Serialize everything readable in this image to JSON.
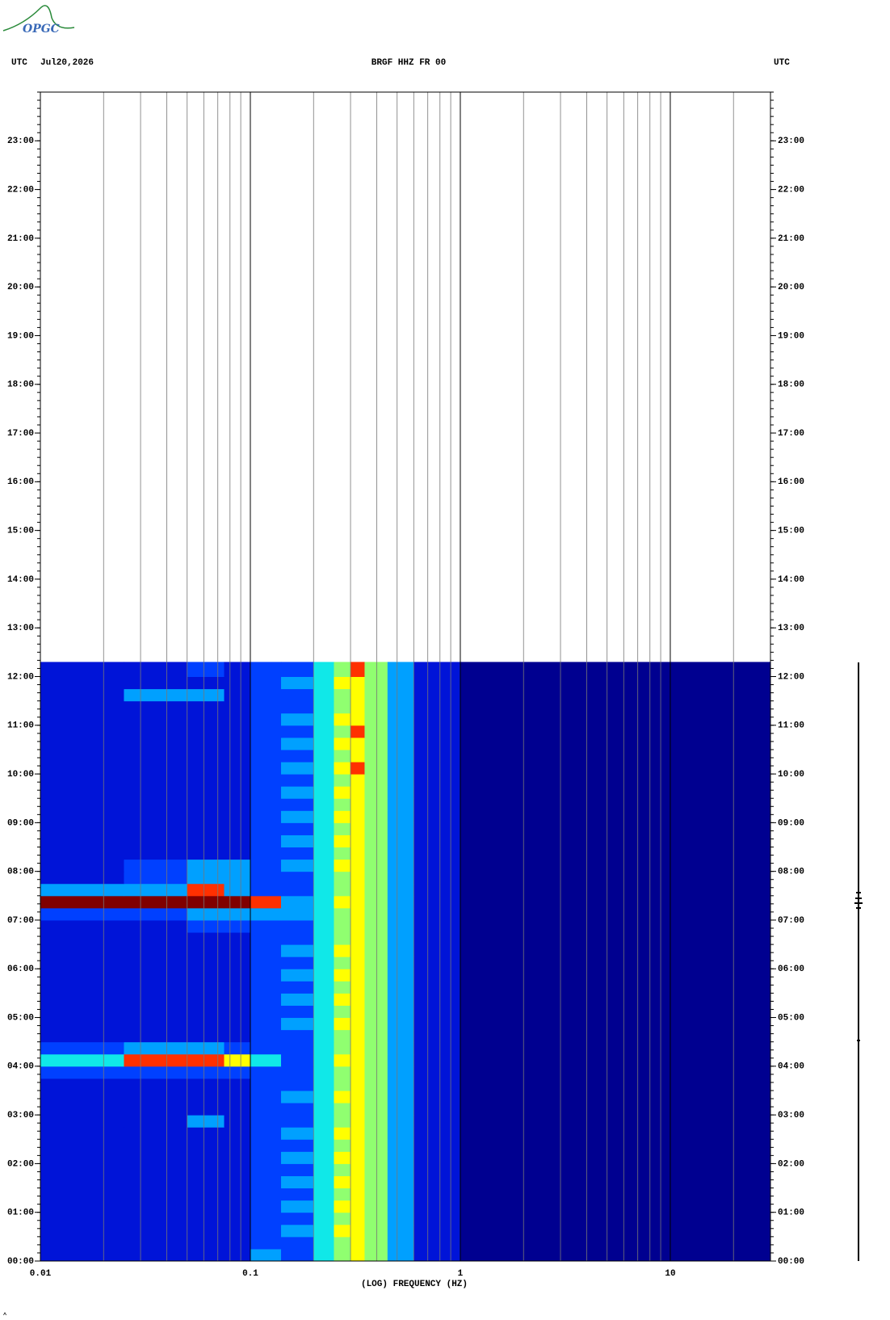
{
  "logo": "OPGC",
  "chart_data": {
    "type": "spectrogram",
    "left_label": "UTC",
    "date": "Jul20,2026",
    "title": "BRGF HHZ FR 00",
    "right_label": "UTC",
    "xlabel": "(LOG) FREQUENCY (HZ)",
    "xscale": "log",
    "xlim": [
      0.01,
      30
    ],
    "xticks": [
      0.01,
      0.1,
      1,
      10
    ],
    "xgrid_minor": [
      0.02,
      0.03,
      0.04,
      0.05,
      0.06,
      0.07,
      0.08,
      0.09,
      0.2,
      0.3,
      0.4,
      0.5,
      0.6,
      0.7,
      0.8,
      0.9,
      2,
      3,
      4,
      5,
      6,
      7,
      8,
      9,
      20
    ],
    "ylim": [
      0,
      24
    ],
    "yticks": [
      {
        "value": 0,
        "label": "00:00"
      },
      {
        "value": 1,
        "label": "01:00"
      },
      {
        "value": 2,
        "label": "02:00"
      },
      {
        "value": 3,
        "label": "03:00"
      },
      {
        "value": 4,
        "label": "04:00"
      },
      {
        "value": 5,
        "label": "05:00"
      },
      {
        "value": 6,
        "label": "06:00"
      },
      {
        "value": 7,
        "label": "07:00"
      },
      {
        "value": 8,
        "label": "08:00"
      },
      {
        "value": 9,
        "label": "09:00"
      },
      {
        "value": 10,
        "label": "10:00"
      },
      {
        "value": 11,
        "label": "11:00"
      },
      {
        "value": 12,
        "label": "12:00"
      },
      {
        "value": 13,
        "label": "13:00"
      },
      {
        "value": 14,
        "label": "14:00"
      },
      {
        "value": 15,
        "label": "15:00"
      },
      {
        "value": 16,
        "label": "16:00"
      },
      {
        "value": 17,
        "label": "17:00"
      },
      {
        "value": 18,
        "label": "18:00"
      },
      {
        "value": 19,
        "label": "19:00"
      },
      {
        "value": 20,
        "label": "20:00"
      },
      {
        "value": 21,
        "label": "21:00"
      },
      {
        "value": 22,
        "label": "22:00"
      },
      {
        "value": 23,
        "label": "23:00"
      }
    ],
    "colormap": [
      "#000090",
      "#0014d8",
      "#0040ff",
      "#00a0ff",
      "#10e8e8",
      "#90ff70",
      "#ffff00",
      "#ff3000",
      "#800000"
    ],
    "freq_edges": [
      0.01,
      0.025,
      0.05,
      0.075,
      0.1,
      0.14,
      0.2,
      0.25,
      0.3,
      0.35,
      0.45,
      0.6,
      1,
      2,
      30
    ],
    "time_edges": [
      0,
      0.25,
      0.5,
      0.75,
      1,
      1.25,
      1.5,
      1.75,
      2,
      2.25,
      2.5,
      2.75,
      3,
      3.25,
      3.5,
      3.75,
      4,
      4.25,
      4.5,
      4.75,
      5,
      5.25,
      5.5,
      5.75,
      6,
      6.25,
      6.5,
      6.75,
      7,
      7.25,
      7.5,
      7.75,
      8,
      8.25,
      8.5,
      8.75,
      9,
      9.25,
      9.5,
      9.75,
      10,
      10.25,
      10.5,
      10.75,
      11,
      11.25,
      11.5,
      11.75,
      12,
      12.3
    ],
    "values": [
      [
        1,
        1,
        1,
        1,
        3,
        2,
        4,
        5,
        6,
        5,
        3,
        1,
        0,
        0
      ],
      [
        1,
        1,
        1,
        1,
        2,
        2,
        4,
        5,
        6,
        5,
        3,
        1,
        0,
        0
      ],
      [
        1,
        1,
        1,
        1,
        2,
        3,
        4,
        6,
        6,
        5,
        3,
        1,
        0,
        0
      ],
      [
        1,
        1,
        1,
        1,
        2,
        2,
        4,
        5,
        6,
        5,
        3,
        1,
        0,
        0
      ],
      [
        1,
        1,
        1,
        1,
        2,
        3,
        4,
        6,
        6,
        5,
        3,
        1,
        0,
        0
      ],
      [
        1,
        1,
        1,
        1,
        2,
        2,
        4,
        5,
        6,
        5,
        3,
        1,
        0,
        0
      ],
      [
        1,
        1,
        1,
        1,
        2,
        3,
        4,
        6,
        6,
        5,
        3,
        1,
        0,
        0
      ],
      [
        1,
        1,
        1,
        1,
        2,
        2,
        4,
        5,
        6,
        5,
        3,
        1,
        0,
        0
      ],
      [
        1,
        1,
        1,
        1,
        2,
        3,
        4,
        6,
        6,
        5,
        3,
        1,
        0,
        0
      ],
      [
        1,
        1,
        1,
        1,
        2,
        2,
        4,
        5,
        6,
        5,
        3,
        1,
        0,
        0
      ],
      [
        1,
        1,
        1,
        1,
        2,
        3,
        4,
        6,
        6,
        5,
        3,
        1,
        0,
        0
      ],
      [
        1,
        1,
        3,
        1,
        2,
        2,
        4,
        5,
        6,
        5,
        3,
        1,
        0,
        0
      ],
      [
        1,
        1,
        1,
        1,
        2,
        2,
        4,
        5,
        6,
        5,
        3,
        1,
        0,
        0
      ],
      [
        1,
        1,
        1,
        1,
        2,
        3,
        4,
        6,
        6,
        5,
        3,
        1,
        0,
        0
      ],
      [
        1,
        1,
        1,
        1,
        2,
        2,
        4,
        5,
        6,
        5,
        3,
        1,
        0,
        0
      ],
      [
        2,
        2,
        2,
        2,
        2,
        2,
        4,
        5,
        6,
        5,
        3,
        1,
        0,
        0
      ],
      [
        4,
        7,
        7,
        6,
        4,
        2,
        4,
        6,
        6,
        5,
        3,
        1,
        0,
        0
      ],
      [
        2,
        3,
        3,
        2,
        2,
        2,
        4,
        5,
        6,
        5,
        3,
        1,
        0,
        0
      ],
      [
        1,
        1,
        1,
        1,
        2,
        2,
        4,
        5,
        6,
        5,
        3,
        1,
        0,
        0
      ],
      [
        1,
        1,
        1,
        1,
        2,
        3,
        4,
        6,
        6,
        5,
        3,
        1,
        0,
        0
      ],
      [
        1,
        1,
        1,
        1,
        2,
        2,
        4,
        5,
        6,
        5,
        3,
        1,
        0,
        0
      ],
      [
        1,
        1,
        1,
        1,
        2,
        3,
        4,
        6,
        6,
        5,
        3,
        1,
        0,
        0
      ],
      [
        1,
        1,
        1,
        1,
        2,
        2,
        4,
        5,
        6,
        5,
        3,
        1,
        0,
        0
      ],
      [
        1,
        1,
        1,
        1,
        2,
        3,
        4,
        6,
        6,
        5,
        3,
        1,
        0,
        0
      ],
      [
        1,
        1,
        1,
        1,
        2,
        2,
        4,
        5,
        6,
        5,
        3,
        1,
        0,
        0
      ],
      [
        1,
        1,
        1,
        1,
        2,
        3,
        4,
        6,
        6,
        5,
        3,
        1,
        0,
        0
      ],
      [
        1,
        1,
        1,
        1,
        2,
        2,
        4,
        5,
        6,
        5,
        3,
        1,
        0,
        0
      ],
      [
        1,
        1,
        2,
        2,
        2,
        2,
        4,
        5,
        6,
        5,
        3,
        1,
        0,
        0
      ],
      [
        2,
        2,
        3,
        3,
        3,
        3,
        4,
        5,
        6,
        5,
        3,
        1,
        0,
        0
      ],
      [
        8,
        8,
        8,
        8,
        7,
        3,
        4,
        6,
        6,
        5,
        3,
        1,
        0,
        0
      ],
      [
        3,
        3,
        7,
        3,
        2,
        2,
        4,
        5,
        6,
        5,
        3,
        1,
        0,
        0
      ],
      [
        1,
        2,
        3,
        3,
        2,
        2,
        4,
        5,
        6,
        5,
        3,
        1,
        0,
        0
      ],
      [
        1,
        2,
        3,
        3,
        2,
        3,
        4,
        6,
        6,
        5,
        3,
        1,
        0,
        0
      ],
      [
        1,
        1,
        1,
        1,
        2,
        2,
        4,
        5,
        6,
        5,
        3,
        1,
        0,
        0
      ],
      [
        1,
        1,
        1,
        1,
        2,
        3,
        4,
        6,
        6,
        5,
        3,
        1,
        0,
        0
      ],
      [
        1,
        1,
        1,
        1,
        2,
        2,
        4,
        5,
        6,
        5,
        3,
        1,
        0,
        0
      ],
      [
        1,
        1,
        1,
        1,
        2,
        3,
        4,
        6,
        6,
        5,
        3,
        1,
        0,
        0
      ],
      [
        1,
        1,
        1,
        1,
        2,
        2,
        4,
        5,
        6,
        5,
        3,
        1,
        0,
        0
      ],
      [
        1,
        1,
        1,
        1,
        2,
        3,
        4,
        6,
        6,
        5,
        3,
        1,
        0,
        0
      ],
      [
        1,
        1,
        1,
        1,
        2,
        2,
        4,
        5,
        6,
        5,
        3,
        1,
        0,
        0
      ],
      [
        1,
        1,
        1,
        1,
        2,
        3,
        4,
        6,
        7,
        5,
        3,
        1,
        0,
        0
      ],
      [
        1,
        1,
        1,
        1,
        2,
        2,
        4,
        5,
        6,
        5,
        3,
        1,
        0,
        0
      ],
      [
        1,
        1,
        1,
        1,
        2,
        3,
        4,
        6,
        6,
        5,
        3,
        1,
        0,
        0
      ],
      [
        1,
        1,
        1,
        1,
        2,
        2,
        4,
        5,
        7,
        5,
        3,
        1,
        0,
        0
      ],
      [
        1,
        1,
        1,
        1,
        2,
        3,
        4,
        6,
        6,
        5,
        3,
        1,
        0,
        0
      ],
      [
        1,
        1,
        1,
        1,
        2,
        2,
        4,
        5,
        6,
        5,
        3,
        1,
        0,
        0
      ],
      [
        1,
        3,
        3,
        1,
        2,
        2,
        4,
        5,
        6,
        5,
        3,
        1,
        0,
        0
      ],
      [
        1,
        1,
        1,
        1,
        2,
        3,
        4,
        6,
        6,
        5,
        3,
        1,
        0,
        0
      ],
      [
        1,
        1,
        2,
        1,
        2,
        2,
        4,
        5,
        7,
        5,
        3,
        1,
        0,
        0
      ]
    ]
  }
}
